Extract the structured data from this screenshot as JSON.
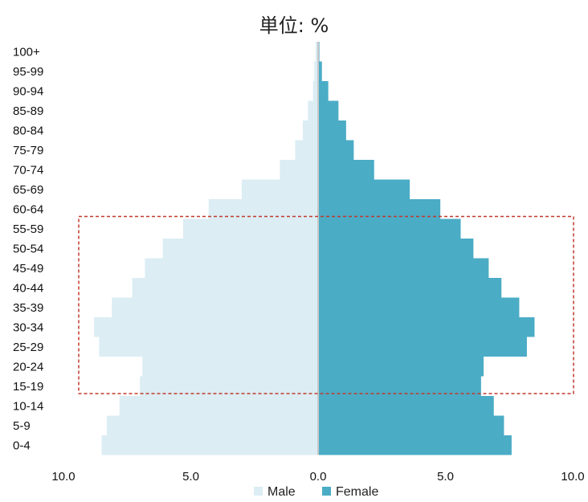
{
  "chart_data": {
    "type": "bar",
    "title": "単位: %",
    "categories": [
      "100+",
      "95-99",
      "90-94",
      "85-89",
      "80-84",
      "75-79",
      "70-74",
      "65-69",
      "60-64",
      "55-59",
      "50-54",
      "45-49",
      "40-44",
      "35-39",
      "30-34",
      "25-29",
      "20-24",
      "15-19",
      "10-14",
      "5-9",
      "0-4"
    ],
    "series": [
      {
        "name": "Male",
        "color": "#dcedf4",
        "values": [
          0.1,
          0.15,
          0.2,
          0.4,
          0.6,
          0.9,
          1.5,
          3.0,
          4.3,
          5.3,
          6.1,
          6.8,
          7.3,
          8.1,
          8.8,
          8.6,
          6.9,
          7.0,
          7.8,
          8.3,
          8.5
        ]
      },
      {
        "name": "Female",
        "color": "#4bacc6",
        "values": [
          0.05,
          0.15,
          0.4,
          0.8,
          1.1,
          1.4,
          2.2,
          3.6,
          4.8,
          5.6,
          6.1,
          6.7,
          7.2,
          7.9,
          8.5,
          8.2,
          6.5,
          6.4,
          6.9,
          7.3,
          7.6
        ]
      }
    ],
    "xlim": [
      -10,
      10
    ],
    "xticks": [
      "10.0",
      "5.0",
      "0.0",
      "5.0",
      "10.0"
    ],
    "legend_position": "bottom",
    "grid": false,
    "highlight_range": [
      "55-59",
      "15-19"
    ]
  }
}
